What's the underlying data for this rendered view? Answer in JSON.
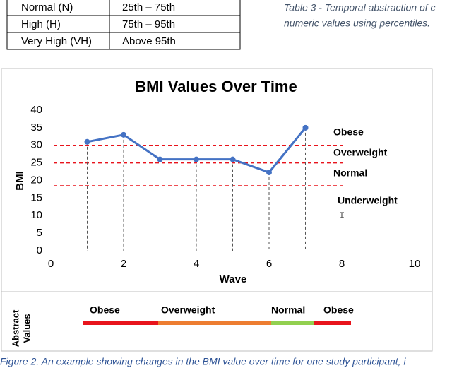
{
  "table": {
    "rows": [
      [
        "Normal (N)",
        "25th – 75th"
      ],
      [
        "High (H)",
        "75th – 95th"
      ],
      [
        "Very High (VH)",
        "Above 95th"
      ]
    ]
  },
  "table_caption": [
    "Table 3 - Temporal abstraction of c",
    "numeric values using percentiles."
  ],
  "chart_data": {
    "type": "line",
    "title": "BMI Values Over Time",
    "x_label": "Wave",
    "y_label": "BMI",
    "x": [
      1,
      2,
      3,
      4,
      5,
      6,
      7
    ],
    "values": [
      31,
      33,
      26,
      26,
      26,
      22.3,
      35
    ],
    "color": "#4472c4",
    "xlim": [
      0,
      10
    ],
    "xticks": [
      0,
      2,
      4,
      6,
      8,
      10
    ],
    "ylim": [
      0,
      40
    ],
    "yticks": [
      0,
      5,
      10,
      15,
      20,
      25,
      30,
      35,
      40
    ],
    "reference_lines": [
      30,
      25,
      18.5
    ],
    "reference_color": "#e8141c",
    "annotations": [
      "Obese",
      "Overweight",
      "Normal",
      "Underweight"
    ]
  },
  "abstract_values": {
    "label": [
      "Abstract",
      "Values"
    ],
    "segments": [
      {
        "name": "Obese",
        "color": "#e8141c"
      },
      {
        "name": "Overweight",
        "color": "#ed7d31"
      },
      {
        "name": "Normal",
        "color": "#92d050"
      },
      {
        "name": "Obese",
        "color": "#e8141c"
      }
    ]
  },
  "figure_caption": "Figure 2. An example showing changes in the BMI value over time for one study participant, i"
}
